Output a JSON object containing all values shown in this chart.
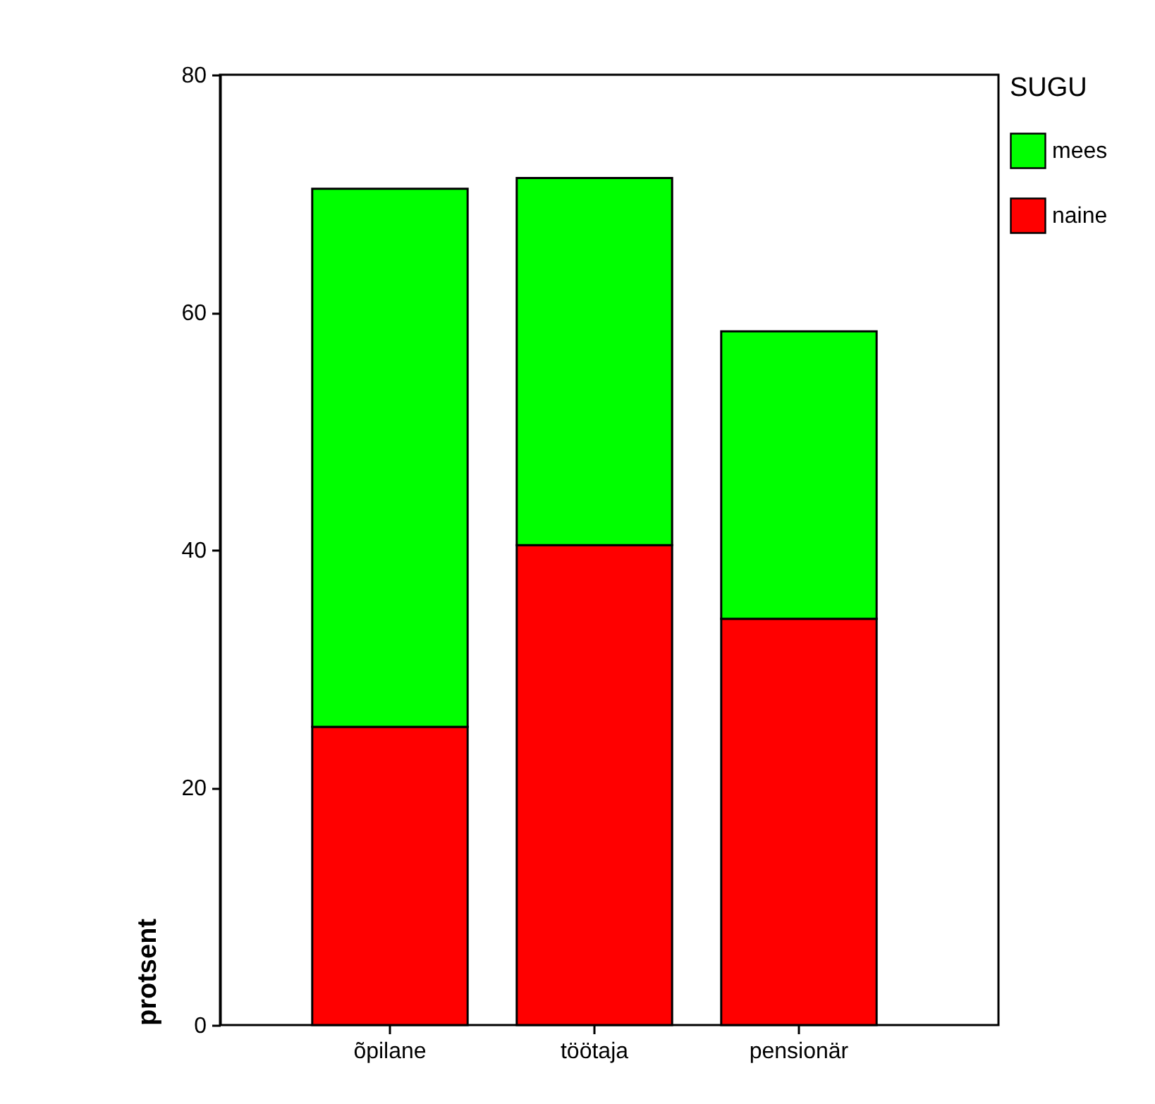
{
  "chart_data": {
    "type": "bar",
    "stacked": true,
    "ylabel": "protsent",
    "legend_title": "SUGU",
    "legend": "right",
    "categories": [
      "õpilane",
      "töötaja",
      "pensionär"
    ],
    "series": [
      {
        "name": "naine",
        "color": "#ff0000",
        "values": [
          25.1,
          40.4,
          34.2
        ]
      },
      {
        "name": "mees",
        "color": "#00ff00",
        "values": [
          45.3,
          30.9,
          24.2
        ]
      }
    ],
    "ylim": [
      0,
      80
    ],
    "yticks": [
      0,
      20,
      40,
      60,
      80
    ],
    "grid": false
  }
}
